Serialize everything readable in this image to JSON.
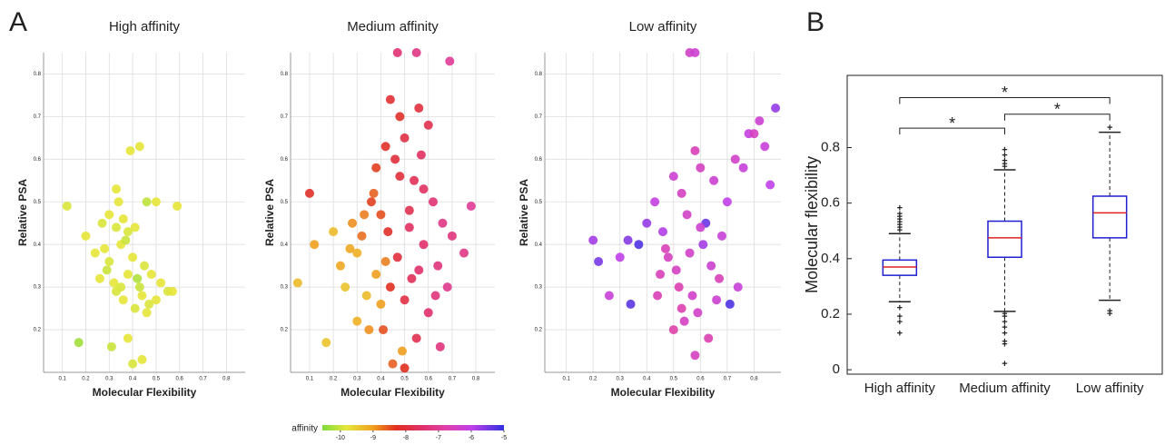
{
  "panel_labels": [
    "A",
    "B"
  ],
  "colorbar": {
    "label": "affinity",
    "lim": [
      -10.55,
      -5
    ],
    "ticks": [
      -10,
      -9,
      -8,
      -7,
      -6,
      -5
    ],
    "stops": [
      {
        "value": -10.55,
        "color": "#7ddc3c"
      },
      {
        "value": -9.8,
        "color": "#e6e63a"
      },
      {
        "value": -9.0,
        "color": "#f0a020"
      },
      {
        "value": -8.3,
        "color": "#e03020"
      },
      {
        "value": -7.5,
        "color": "#e0306a"
      },
      {
        "value": -6.8,
        "color": "#e040a8"
      },
      {
        "value": -6.0,
        "color": "#c040e8"
      },
      {
        "value": -5,
        "color": "#3030e0"
      }
    ]
  },
  "chart_data": [
    {
      "type": "scatter",
      "title": "High affinity",
      "xlabel": "Molecular Flexibility",
      "ylabel": "Relative PSA",
      "xlim": [
        0.02,
        0.88
      ],
      "ylim": [
        0.1,
        0.85
      ],
      "xticks": [
        0.1,
        0.2,
        0.3,
        0.4,
        0.5,
        0.6,
        0.7,
        0.8
      ],
      "yticks": [
        0.2,
        0.3,
        0.4,
        0.5,
        0.6,
        0.7,
        0.8
      ],
      "grid": true,
      "x": [
        0.12,
        0.17,
        0.31,
        0.4,
        0.44,
        0.39,
        0.43,
        0.33,
        0.34,
        0.46,
        0.5,
        0.59,
        0.2,
        0.24,
        0.27,
        0.3,
        0.33,
        0.36,
        0.38,
        0.41,
        0.28,
        0.3,
        0.35,
        0.37,
        0.4,
        0.45,
        0.48,
        0.52,
        0.55,
        0.57,
        0.26,
        0.29,
        0.32,
        0.35,
        0.38,
        0.42,
        0.44,
        0.47,
        0.5,
        0.38,
        0.41,
        0.43,
        0.46,
        0.33,
        0.36
      ],
      "y": [
        0.49,
        0.17,
        0.16,
        0.12,
        0.13,
        0.62,
        0.63,
        0.53,
        0.5,
        0.5,
        0.5,
        0.49,
        0.42,
        0.38,
        0.45,
        0.47,
        0.44,
        0.46,
        0.43,
        0.44,
        0.39,
        0.36,
        0.4,
        0.41,
        0.37,
        0.35,
        0.33,
        0.31,
        0.29,
        0.29,
        0.32,
        0.34,
        0.31,
        0.3,
        0.33,
        0.32,
        0.28,
        0.26,
        0.27,
        0.18,
        0.25,
        0.3,
        0.24,
        0.29,
        0.27
      ],
      "c": [
        -9.9,
        -10.3,
        -10.0,
        -9.9,
        -9.8,
        -9.8,
        -9.8,
        -9.8,
        -9.8,
        -10.1,
        -9.8,
        -9.8,
        -9.8,
        -9.8,
        -9.9,
        -9.8,
        -9.9,
        -9.8,
        -9.9,
        -9.8,
        -9.8,
        -9.9,
        -9.8,
        -10.0,
        -9.8,
        -9.9,
        -9.8,
        -9.8,
        -9.9,
        -9.8,
        -9.8,
        -10.0,
        -9.8,
        -9.9,
        -9.8,
        -10.2,
        -9.8,
        -9.9,
        -9.8,
        -9.8,
        -9.9,
        -10.0,
        -9.8,
        -9.9,
        -9.8
      ]
    },
    {
      "type": "scatter",
      "title": "Medium affinity",
      "xlabel": "Molecular Flexibility",
      "ylabel": "Relative PSA",
      "xlim": [
        0.02,
        0.88
      ],
      "ylim": [
        0.1,
        0.85
      ],
      "xticks": [
        0.1,
        0.2,
        0.3,
        0.4,
        0.5,
        0.6,
        0.7,
        0.8
      ],
      "yticks": [
        0.2,
        0.3,
        0.4,
        0.5,
        0.6,
        0.7,
        0.8
      ],
      "grid": true,
      "x": [
        0.47,
        0.55,
        0.69,
        0.05,
        0.1,
        0.12,
        0.17,
        0.2,
        0.23,
        0.25,
        0.28,
        0.3,
        0.32,
        0.34,
        0.36,
        0.38,
        0.4,
        0.42,
        0.44,
        0.46,
        0.48,
        0.5,
        0.52,
        0.54,
        0.56,
        0.58,
        0.6,
        0.62,
        0.64,
        0.66,
        0.68,
        0.7,
        0.75,
        0.78,
        0.3,
        0.35,
        0.4,
        0.45,
        0.5,
        0.55,
        0.6,
        0.65,
        0.38,
        0.42,
        0.48,
        0.52,
        0.58,
        0.44,
        0.5,
        0.56,
        0.27,
        0.33,
        0.37,
        0.43,
        0.47,
        0.53,
        0.57,
        0.63,
        0.41,
        0.49
      ],
      "y": [
        0.85,
        0.85,
        0.83,
        0.31,
        0.52,
        0.4,
        0.17,
        0.43,
        0.35,
        0.3,
        0.45,
        0.38,
        0.42,
        0.28,
        0.5,
        0.33,
        0.47,
        0.36,
        0.74,
        0.6,
        0.7,
        0.65,
        0.44,
        0.55,
        0.72,
        0.4,
        0.68,
        0.5,
        0.35,
        0.45,
        0.3,
        0.42,
        0.38,
        0.49,
        0.22,
        0.2,
        0.26,
        0.12,
        0.11,
        0.18,
        0.24,
        0.16,
        0.58,
        0.63,
        0.56,
        0.48,
        0.53,
        0.3,
        0.27,
        0.34,
        0.39,
        0.47,
        0.52,
        0.43,
        0.37,
        0.32,
        0.61,
        0.28,
        0.2,
        0.15
      ],
      "c": [
        -7.4,
        -7.2,
        -7.0,
        -9.3,
        -8.2,
        -9.0,
        -9.4,
        -9.3,
        -9.1,
        -9.4,
        -8.9,
        -9.2,
        -8.7,
        -9.3,
        -8.4,
        -9.0,
        -8.5,
        -8.8,
        -8.1,
        -8.0,
        -8.2,
        -7.9,
        -7.6,
        -7.7,
        -8.0,
        -7.5,
        -7.8,
        -7.4,
        -7.3,
        -7.2,
        -7.1,
        -7.3,
        -7.2,
        -7.0,
        -9.2,
        -8.9,
        -9.0,
        -8.6,
        -8.3,
        -7.8,
        -7.5,
        -7.3,
        -8.4,
        -8.2,
        -8.0,
        -7.8,
        -7.6,
        -8.3,
        -7.9,
        -7.5,
        -9.1,
        -8.8,
        -8.6,
        -8.2,
        -8.0,
        -7.7,
        -7.6,
        -7.3,
        -8.5,
        -9.0
      ]
    },
    {
      "type": "scatter",
      "title": "Low affinity",
      "xlabel": "Molecular Flexibility",
      "ylabel": "Relative PSA",
      "xlim": [
        0.02,
        0.9
      ],
      "ylim": [
        0.1,
        0.85
      ],
      "xticks": [
        0.1,
        0.2,
        0.3,
        0.4,
        0.5,
        0.6,
        0.7,
        0.8
      ],
      "yticks": [
        0.2,
        0.3,
        0.4,
        0.5,
        0.6,
        0.7,
        0.8
      ],
      "grid": true,
      "x": [
        0.56,
        0.58,
        0.2,
        0.22,
        0.26,
        0.3,
        0.34,
        0.33,
        0.37,
        0.4,
        0.43,
        0.46,
        0.5,
        0.53,
        0.55,
        0.58,
        0.6,
        0.62,
        0.65,
        0.68,
        0.7,
        0.73,
        0.76,
        0.78,
        0.8,
        0.82,
        0.84,
        0.86,
        0.88,
        0.45,
        0.48,
        0.52,
        0.57,
        0.61,
        0.64,
        0.67,
        0.5,
        0.54,
        0.59,
        0.63,
        0.66,
        0.71,
        0.74,
        0.44,
        0.51,
        0.56,
        0.6,
        0.47,
        0.53,
        0.58
      ],
      "y": [
        0.85,
        0.85,
        0.41,
        0.36,
        0.28,
        0.37,
        0.26,
        0.41,
        0.4,
        0.45,
        0.5,
        0.43,
        0.56,
        0.52,
        0.47,
        0.62,
        0.58,
        0.45,
        0.55,
        0.42,
        0.5,
        0.6,
        0.58,
        0.66,
        0.66,
        0.69,
        0.63,
        0.54,
        0.72,
        0.33,
        0.37,
        0.3,
        0.28,
        0.4,
        0.35,
        0.32,
        0.2,
        0.22,
        0.24,
        0.18,
        0.27,
        0.26,
        0.3,
        0.28,
        0.34,
        0.38,
        0.44,
        0.39,
        0.25,
        0.14
      ],
      "c": [
        -6.4,
        -6.3,
        -5.8,
        -5.5,
        -6.2,
        -6.0,
        -5.3,
        -5.6,
        -5.2,
        -5.7,
        -6.1,
        -5.9,
        -6.3,
        -6.5,
        -6.4,
        -6.6,
        -6.5,
        -5.4,
        -6.3,
        -6.2,
        -6.0,
        -6.4,
        -6.2,
        -6.1,
        -6.5,
        -6.3,
        -6.2,
        -6.0,
        -5.7,
        -6.6,
        -6.5,
        -6.7,
        -6.4,
        -5.8,
        -6.3,
        -6.6,
        -6.8,
        -6.5,
        -6.4,
        -6.7,
        -6.3,
        -5.2,
        -6.2,
        -6.6,
        -6.5,
        -6.4,
        -6.3,
        -6.6,
        -6.7,
        -6.5
      ]
    },
    {
      "type": "box",
      "ylabel": "Molecular flexibility",
      "categories": [
        "High affinity",
        "Medium affinity",
        "Low affinity"
      ],
      "ylim": [
        -0.016,
        1.06
      ],
      "yticks": [
        0,
        0.2,
        0.4,
        0.6,
        0.8
      ],
      "box_color": "#1f1fd0",
      "median_color": "#e02020",
      "flier_color": "#e02020",
      "boxes": [
        {
          "whislo": 0.245,
          "q1": 0.34,
          "med": 0.37,
          "q3": 0.395,
          "whishi": 0.49,
          "fliers": [
            0.58,
            0.56,
            0.55,
            0.54,
            0.53,
            0.52,
            0.51,
            0.5,
            0.22,
            0.19,
            0.17,
            0.13
          ]
        },
        {
          "whislo": 0.21,
          "q1": 0.405,
          "med": 0.475,
          "q3": 0.535,
          "whishi": 0.72,
          "fliers": [
            0.79,
            0.77,
            0.75,
            0.74,
            0.73,
            0.2,
            0.19,
            0.17,
            0.15,
            0.13,
            0.1,
            0.09,
            0.02
          ]
        },
        {
          "whislo": 0.25,
          "q1": 0.475,
          "med": 0.565,
          "q3": 0.625,
          "whishi": 0.855,
          "fliers": [
            0.87,
            0.21,
            0.2
          ]
        }
      ],
      "brackets": [
        {
          "from": 0,
          "to": 2,
          "y": 0.98,
          "label": "*"
        },
        {
          "from": 0,
          "to": 1,
          "y": 0.87,
          "label": "*"
        },
        {
          "from": 1,
          "to": 2,
          "y": 0.92,
          "label": "*"
        }
      ]
    }
  ]
}
